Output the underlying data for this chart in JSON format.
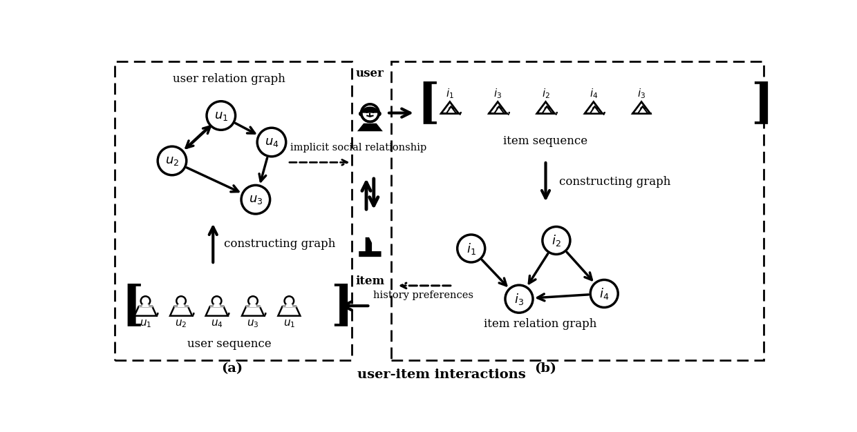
{
  "bg_color": "#ffffff",
  "title": "user-item interactions",
  "panel_a_label": "(a)",
  "panel_b_label": "(b)",
  "user_relation_graph_label": "user relation graph",
  "item_relation_graph_label": "item relation graph",
  "user_sequence_label": "user sequence",
  "item_sequence_label": "item sequence",
  "constructing_graph_label": "constructing graph",
  "implicit_social_label": "implicit social relationship",
  "history_pref_label": "history preferences",
  "user_sequence_labels": [
    "u_1",
    "u_2",
    "u_4",
    "u_3",
    "u_1"
  ],
  "item_sequence_labels": [
    "i_1",
    "i_3",
    "i_2",
    "i_4",
    "i_3"
  ]
}
